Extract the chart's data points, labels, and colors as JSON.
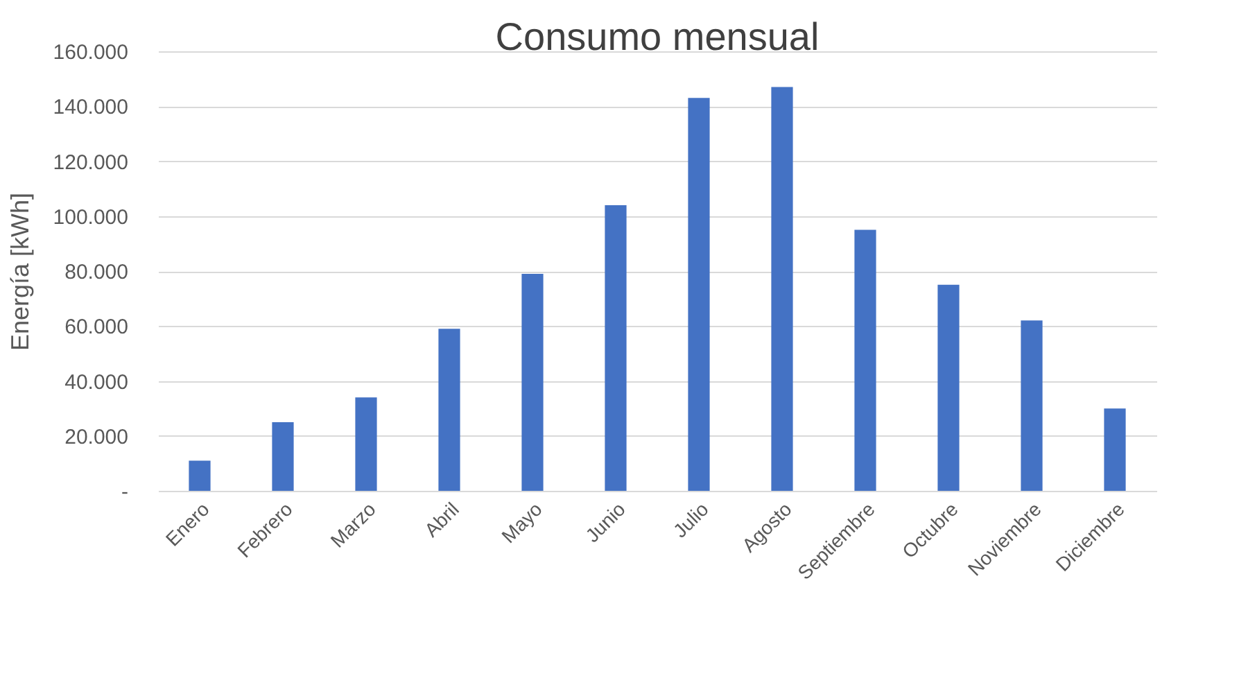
{
  "chart_data": {
    "type": "bar",
    "title": "Consumo mensual",
    "ylabel": "Energía [kWh]",
    "categories": [
      "Enero",
      "Febrero",
      "Marzo",
      "Abril",
      "Mayo",
      "Junio",
      "Julio",
      "Agosto",
      "Septiembre",
      "Octubre",
      "Noviembre",
      "Diciembre"
    ],
    "values": [
      11000,
      25000,
      34000,
      59000,
      79000,
      104000,
      143000,
      147000,
      95000,
      75000,
      62000,
      30000
    ],
    "color": "#4472c4",
    "ylim": [
      0,
      160000
    ],
    "yticks": [
      {
        "value": 0,
        "label": "-"
      },
      {
        "value": 20000,
        "label": "20.000"
      },
      {
        "value": 40000,
        "label": "40.000"
      },
      {
        "value": 60000,
        "label": "60.000"
      },
      {
        "value": 80000,
        "label": "80.000"
      },
      {
        "value": 100000,
        "label": "100.000"
      },
      {
        "value": 120000,
        "label": "120.000"
      },
      {
        "value": 140000,
        "label": "140.000"
      },
      {
        "value": 160000,
        "label": "160.000"
      }
    ],
    "grid": "y"
  }
}
